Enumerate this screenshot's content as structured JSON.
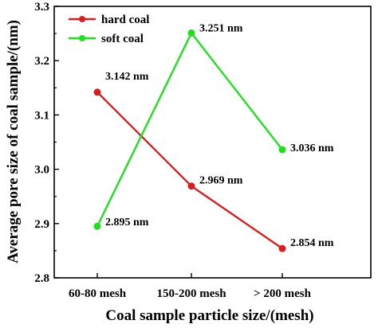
{
  "chart_data": {
    "type": "line",
    "categories": [
      "60-80 mesh",
      "150-200 mesh",
      "> 200 mesh"
    ],
    "series": [
      {
        "name": "hard coal",
        "color": "#d42020",
        "values": [
          3.142,
          2.969,
          2.854
        ],
        "labels": [
          "3.142 nm",
          "2.969 nm",
          "2.854 nm"
        ]
      },
      {
        "name": "soft coal",
        "color": "#22dd22",
        "values": [
          2.895,
          3.251,
          3.036
        ],
        "labels": [
          "2.895 nm",
          "3.251 nm",
          "3.036 nm"
        ]
      }
    ],
    "xlabel": "Coal sample particle size/(mesh)",
    "ylabel": "Average pore size of coal sample/(nm)",
    "ylim": [
      2.8,
      3.3
    ],
    "yticks": [
      "2.8",
      "2.9",
      "3.0",
      "3.1",
      "3.2",
      "3.3"
    ],
    "grid": false,
    "legend_position": "top-left"
  }
}
